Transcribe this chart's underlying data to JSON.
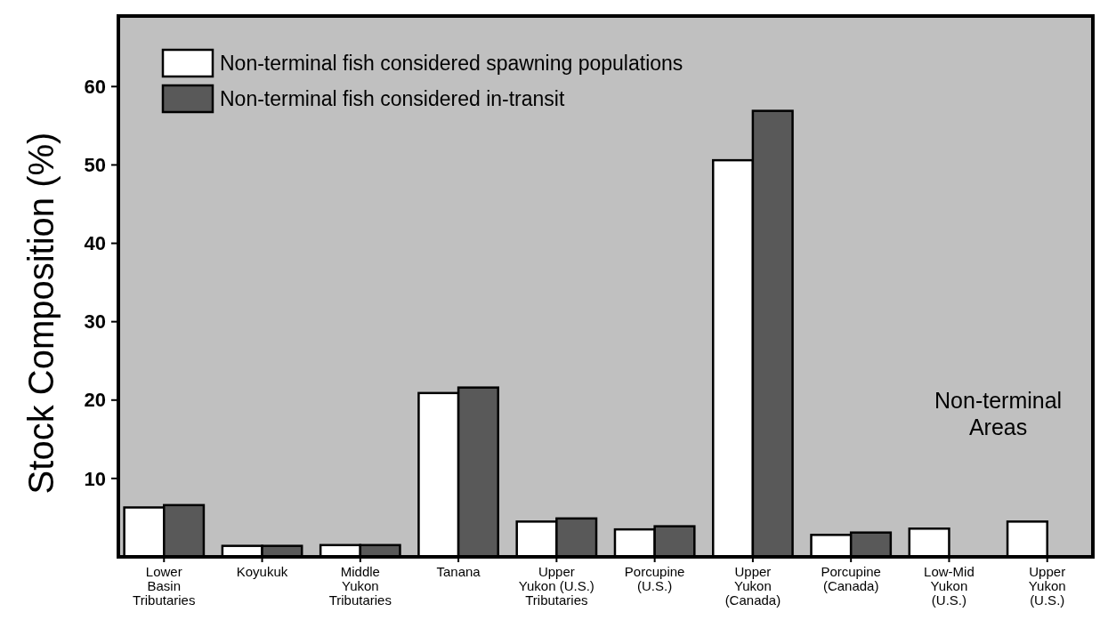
{
  "chart_data": {
    "type": "bar",
    "ylabel": "Stock Composition (%)",
    "categories": [
      "Lower\nBasin\nTributaries",
      "Koyukuk",
      "Middle\nYukon\nTributaries",
      "Tanana",
      "Upper\nYukon (U.S.)\nTributaries",
      "Porcupine\n(U.S.)",
      "Upper\nYukon\n(Canada)",
      "Porcupine\n(Canada)",
      "Low-Mid\nYukon\n(U.S.)",
      "Upper\nYukon\n(U.S.)"
    ],
    "series": [
      {
        "name": "Non-terminal fish considered spawning populations",
        "color": "#ffffff",
        "values": [
          6.3,
          1.4,
          1.5,
          20.9,
          4.5,
          3.5,
          50.6,
          2.8,
          3.6,
          4.5
        ]
      },
      {
        "name": "Non-terminal fish considered in-transit",
        "color": "#595959",
        "values": [
          6.6,
          1.4,
          1.5,
          21.6,
          4.9,
          3.9,
          56.9,
          3.1,
          null,
          null
        ]
      }
    ],
    "ylim": [
      0,
      69
    ],
    "yticks": [
      10,
      20,
      30,
      40,
      50,
      60
    ],
    "grid": false,
    "legend": "top left",
    "annotations": [
      "Non-terminal\nAreas"
    ]
  }
}
